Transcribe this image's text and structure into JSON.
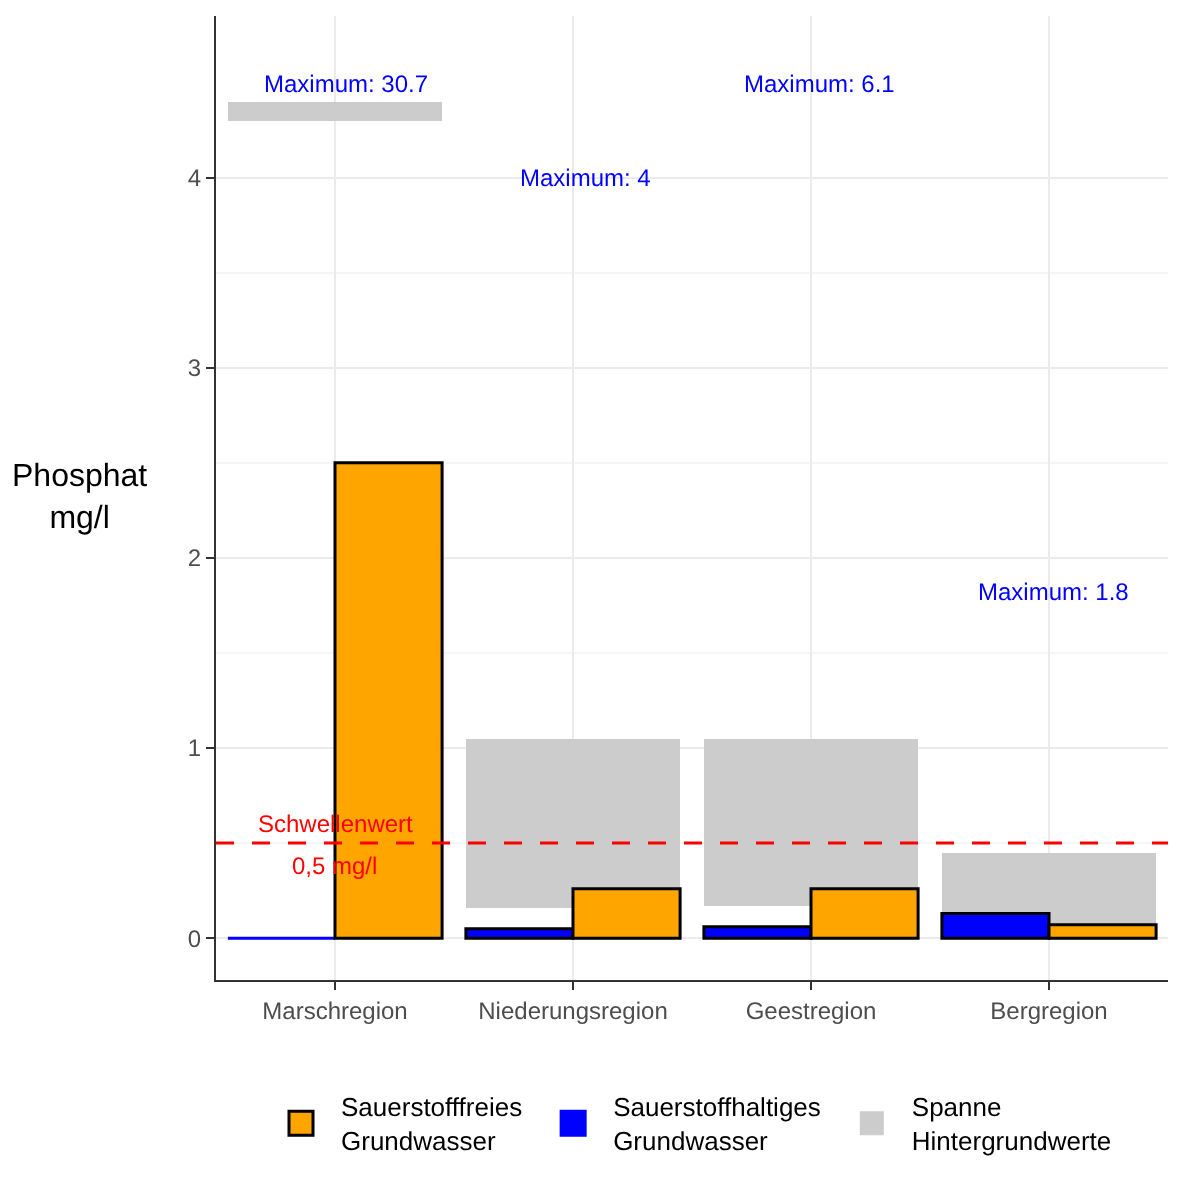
{
  "chart_data": {
    "type": "bar",
    "ylabel": "Phosphat\nmg/l",
    "categories": [
      "Marschregion",
      "Niederungsregion",
      "Geestregion",
      "Bergregion"
    ],
    "series": [
      {
        "name": "Spanne Hintergrundwerte",
        "color": "#cccccc",
        "values": [
          0.1,
          0.89,
          0.88,
          0.45
        ],
        "base": [
          4.3,
          0.16,
          0.17,
          0
        ]
      },
      {
        "name": "Sauerstoffhaltiges Grundwasser",
        "color": "#0000ff",
        "values": [
          0,
          0.05,
          0.06,
          0.13
        ]
      },
      {
        "name": "Sauerstofffreies Grundwasser",
        "color": "#ffa500",
        "values": [
          2.5,
          0.26,
          0.26,
          0.07
        ]
      }
    ],
    "ylim": [
      -0.22,
      4.85
    ],
    "yticks": [
      0,
      1,
      2,
      3,
      4
    ],
    "grid": true,
    "legend": "bottom",
    "ref_lines": [
      {
        "axis": "y",
        "value": 0.5,
        "label": "Schwellenwert\n0,5 mg/l",
        "color": "#ff0000",
        "line_style": "dashed"
      }
    ],
    "annotations": [
      "Maximum: 30.7",
      "Maximum: 4",
      "Maximum: 6.1",
      "Maximum: 1.8"
    ]
  }
}
